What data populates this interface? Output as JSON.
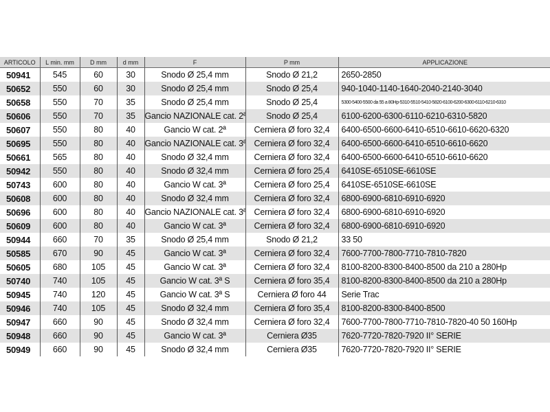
{
  "headers": [
    "ARTICOLO",
    "L min. mm",
    "D mm",
    "d mm",
    "F",
    "P mm",
    "APPLICAZIONE"
  ],
  "rows": [
    [
      "50941",
      "545",
      "60",
      "30",
      "Snodo Ø 25,4 mm",
      "Snodo Ø 21,2",
      "2650-2850"
    ],
    [
      "50652",
      "550",
      "60",
      "30",
      "Snodo Ø 25,4 mm",
      "Snodo Ø 25,4",
      "940-1040-1140-1640-2040-2140-3040"
    ],
    [
      "50658",
      "550",
      "70",
      "35",
      "Snodo Ø 25,4 mm",
      "Snodo Ø 25,4",
      "5300-5400-5500 da 55 a 80Hp-5310-5510-5410-5820-6100-6200-6300-6110-6210-6310"
    ],
    [
      "50606",
      "550",
      "70",
      "35",
      "Gancio NAZIONALE cat. 2ª",
      "Snodo Ø 25,4",
      "6100-6200-6300-6110-6210-6310-5820"
    ],
    [
      "50607",
      "550",
      "80",
      "40",
      "Gancio W cat. 2ª",
      "Cerniera Ø foro 32,4",
      "6400-6500-6600-6410-6510-6610-6620-6320"
    ],
    [
      "50695",
      "550",
      "80",
      "40",
      "Gancio NAZIONALE cat. 3ª",
      "Cerniera Ø foro 32,4",
      "6400-6500-6600-6410-6510-6610-6620"
    ],
    [
      "50661",
      "565",
      "80",
      "40",
      "Snodo Ø 32,4 mm",
      "Cerniera Ø foro 32,4",
      "6400-6500-6600-6410-6510-6610-6620"
    ],
    [
      "50942",
      "550",
      "80",
      "40",
      "Snodo Ø 32,4 mm",
      "Cerniera Ø foro 25,4",
      "6410SE-6510SE-6610SE"
    ],
    [
      "50743",
      "600",
      "80",
      "40",
      "Gancio W cat. 3ª",
      "Cerniera Ø foro 25,4",
      "6410SE-6510SE-6610SE"
    ],
    [
      "50608",
      "600",
      "80",
      "40",
      "Snodo Ø 32,4 mm",
      "Cerniera Ø foro 32,4",
      "6800-6900-6810-6910-6920"
    ],
    [
      "50696",
      "600",
      "80",
      "40",
      "Gancio NAZIONALE cat. 3ª",
      "Cerniera Ø foro 32,4",
      "6800-6900-6810-6910-6920"
    ],
    [
      "50609",
      "600",
      "80",
      "40",
      "Gancio W cat. 3ª",
      "Cerniera Ø foro 32,4",
      "6800-6900-6810-6910-6920"
    ],
    [
      "50944",
      "660",
      "70",
      "35",
      "Snodo Ø 25,4 mm",
      "Snodo Ø 21,2",
      "33 50"
    ],
    [
      "50585",
      "670",
      "90",
      "45",
      "Gancio W cat. 3ª",
      "Cerniera Ø foro 32,4",
      "7600-7700-7800-7710-7810-7820"
    ],
    [
      "50605",
      "680",
      "105",
      "45",
      "Gancio W cat. 3ª",
      "Cerniera Ø foro 32,4",
      "8100-8200-8300-8400-8500 da 210 a 280Hp"
    ],
    [
      "50740",
      "740",
      "105",
      "45",
      "Gancio W cat. 3ª S",
      "Cerniera Ø foro 35,4",
      "8100-8200-8300-8400-8500 da 210 a 280Hp"
    ],
    [
      "50945",
      "740",
      "120",
      "45",
      "Gancio W cat. 3ª S",
      "Cerniera Ø foro 44",
      "Serie Trac"
    ],
    [
      "50946",
      "740",
      "105",
      "45",
      "Snodo Ø 32,4 mm",
      "Cerniera Ø foro 35,4",
      "8100-8200-8300-8400-8500"
    ],
    [
      "50947",
      "660",
      "90",
      "45",
      "Snodo Ø 32,4 mm",
      "Cerniera Ø foro 32,4",
      "7600-7700-7800-7710-7810-7820-40 50 160Hp"
    ],
    [
      "50948",
      "660",
      "90",
      "45",
      "Gancio W cat. 3ª",
      "Cerniera Ø35",
      "7620-7720-7820-7920 II° SERIE"
    ],
    [
      "50949",
      "660",
      "90",
      "45",
      "Snodo Ø 32,4 mm",
      "Cerniera Ø35",
      "7620-7720-7820-7920 II° SERIE"
    ]
  ]
}
